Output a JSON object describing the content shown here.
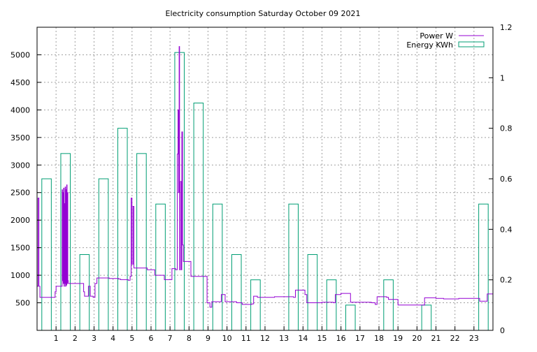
{
  "chart_data": {
    "type": "line",
    "title": "Electricity consumption Saturday October 09 2021",
    "x_ticks": [
      1,
      2,
      3,
      4,
      5,
      6,
      7,
      8,
      9,
      10,
      11,
      12,
      13,
      14,
      15,
      16,
      17,
      18,
      19,
      20,
      21,
      22,
      23
    ],
    "xlim": [
      0,
      24
    ],
    "ylim": [
      0,
      5500
    ],
    "y_ticks": [
      500,
      1000,
      1500,
      2000,
      2500,
      3000,
      3500,
      4000,
      4500,
      5000
    ],
    "y2lim": [
      0,
      1.2
    ],
    "y2_ticks": [
      "0",
      "0.2",
      "0.4",
      "0.6",
      "0.8",
      "1",
      "1.2"
    ],
    "y2_tick_values": [
      0,
      0.2,
      0.4,
      0.6,
      0.8,
      1,
      1.2
    ],
    "grid": true,
    "legend_position": "top-right",
    "colors": {
      "power": "#9400d3",
      "energy": "#009e73"
    },
    "series": [
      {
        "name": "Power W",
        "axis": "left",
        "points": [
          [
            0.0,
            800
          ],
          [
            0.05,
            2400
          ],
          [
            0.1,
            800
          ],
          [
            0.15,
            600
          ],
          [
            0.9,
            600
          ],
          [
            0.95,
            700
          ],
          [
            1.0,
            800
          ],
          [
            1.3,
            800
          ],
          [
            1.32,
            2550
          ],
          [
            1.34,
            900
          ],
          [
            1.36,
            2500
          ],
          [
            1.38,
            850
          ],
          [
            1.4,
            2580
          ],
          [
            1.42,
            800
          ],
          [
            1.44,
            2300
          ],
          [
            1.46,
            850
          ],
          [
            1.48,
            2600
          ],
          [
            1.5,
            800
          ],
          [
            1.52,
            2550
          ],
          [
            1.54,
            820
          ],
          [
            1.56,
            2640
          ],
          [
            1.58,
            850
          ],
          [
            1.6,
            2500
          ],
          [
            1.62,
            900
          ],
          [
            1.65,
            850
          ],
          [
            2.3,
            850
          ],
          [
            2.45,
            700
          ],
          [
            2.5,
            620
          ],
          [
            2.7,
            800
          ],
          [
            2.8,
            620
          ],
          [
            2.95,
            600
          ],
          [
            3.05,
            850
          ],
          [
            3.15,
            950
          ],
          [
            3.7,
            950
          ],
          [
            3.8,
            940
          ],
          [
            4.3,
            930
          ],
          [
            4.4,
            920
          ],
          [
            4.8,
            910
          ],
          [
            4.9,
            980
          ],
          [
            4.95,
            2400
          ],
          [
            5.0,
            1200
          ],
          [
            5.05,
            2250
          ],
          [
            5.1,
            1130
          ],
          [
            5.8,
            1100
          ],
          [
            6.2,
            1000
          ],
          [
            6.7,
            920
          ],
          [
            7.0,
            920
          ],
          [
            7.1,
            1120
          ],
          [
            7.3,
            1100
          ],
          [
            7.38,
            3200
          ],
          [
            7.42,
            4000
          ],
          [
            7.45,
            2500
          ],
          [
            7.48,
            5150
          ],
          [
            7.5,
            1100
          ],
          [
            7.55,
            2700
          ],
          [
            7.6,
            1100
          ],
          [
            7.62,
            3600
          ],
          [
            7.66,
            1550
          ],
          [
            7.7,
            1250
          ],
          [
            8.0,
            1250
          ],
          [
            8.1,
            980
          ],
          [
            8.8,
            980
          ],
          [
            8.95,
            500
          ],
          [
            9.1,
            420
          ],
          [
            9.2,
            520
          ],
          [
            9.5,
            520
          ],
          [
            9.7,
            650
          ],
          [
            9.9,
            520
          ],
          [
            10.5,
            500
          ],
          [
            10.8,
            470
          ],
          [
            11.3,
            480
          ],
          [
            11.4,
            620
          ],
          [
            11.6,
            600
          ],
          [
            12.5,
            610
          ],
          [
            13.0,
            610
          ],
          [
            13.5,
            600
          ],
          [
            13.6,
            730
          ],
          [
            14.0,
            730
          ],
          [
            14.1,
            650
          ],
          [
            14.2,
            500
          ],
          [
            14.6,
            500
          ],
          [
            15.0,
            510
          ],
          [
            15.6,
            500
          ],
          [
            15.7,
            650
          ],
          [
            16.0,
            670
          ],
          [
            16.4,
            670
          ],
          [
            16.5,
            510
          ],
          [
            17.6,
            500
          ],
          [
            17.8,
            470
          ],
          [
            17.9,
            610
          ],
          [
            18.4,
            600
          ],
          [
            18.5,
            560
          ],
          [
            18.9,
            560
          ],
          [
            19.0,
            460
          ],
          [
            20.3,
            460
          ],
          [
            20.4,
            590
          ],
          [
            21.0,
            580
          ],
          [
            21.4,
            570
          ],
          [
            22.2,
            580
          ],
          [
            22.8,
            580
          ],
          [
            23.3,
            530
          ],
          [
            23.6,
            530
          ],
          [
            23.7,
            660
          ],
          [
            24.0,
            650
          ]
        ]
      },
      {
        "name": "Energy KWh",
        "axis": "right",
        "bars": [
          [
            0,
            0.6
          ],
          [
            1,
            0.7
          ],
          [
            2,
            0.3
          ],
          [
            3,
            0.6
          ],
          [
            4,
            0.8
          ],
          [
            5,
            0.7
          ],
          [
            6,
            0.5
          ],
          [
            7,
            1.1
          ],
          [
            8,
            0.9
          ],
          [
            9,
            0.5
          ],
          [
            10,
            0.3
          ],
          [
            11,
            0.2
          ],
          [
            13,
            0.5
          ],
          [
            14,
            0.3
          ],
          [
            15,
            0.2
          ],
          [
            16,
            0.1
          ],
          [
            18,
            0.2
          ],
          [
            20,
            0.1
          ],
          [
            23,
            0.5
          ]
        ]
      }
    ]
  }
}
